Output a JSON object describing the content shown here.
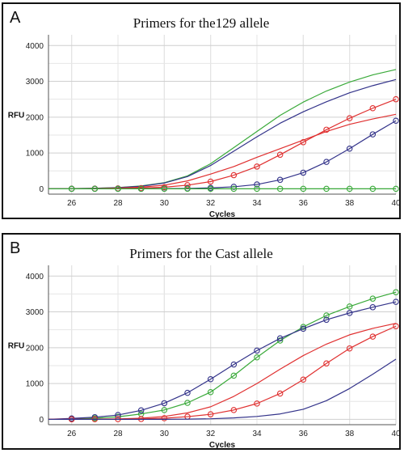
{
  "chart_data": [
    {
      "type": "line",
      "panel_label": "A",
      "title": "Primers for the129 allele",
      "xlabel": "Cycles",
      "ylabel": "RFU",
      "xlim": [
        25,
        40
      ],
      "ylim": [
        -150,
        4300
      ],
      "x_ticks": [
        26,
        28,
        30,
        32,
        34,
        36,
        38,
        40
      ],
      "y_ticks": [
        0,
        1000,
        2000,
        3000,
        4000
      ],
      "grid": true,
      "series": [
        {
          "color": "#3aaa3a",
          "marker": false,
          "x": [
            25,
            26,
            27,
            28,
            29,
            30,
            31,
            32,
            33,
            34,
            35,
            36,
            37,
            38,
            39,
            40
          ],
          "y": [
            0,
            5,
            15,
            35,
            80,
            170,
            360,
            700,
            1150,
            1600,
            2050,
            2420,
            2730,
            2980,
            3180,
            3330
          ]
        },
        {
          "color": "#33338a",
          "marker": false,
          "x": [
            25,
            26,
            27,
            28,
            29,
            30,
            31,
            32,
            33,
            34,
            35,
            36,
            37,
            38,
            39,
            40
          ],
          "y": [
            0,
            5,
            12,
            30,
            70,
            160,
            340,
            650,
            1050,
            1450,
            1830,
            2150,
            2430,
            2680,
            2880,
            3050
          ]
        },
        {
          "color": "#e03030",
          "marker": false,
          "x": [
            25,
            26,
            27,
            28,
            29,
            30,
            31,
            32,
            33,
            34,
            35,
            36,
            37,
            38,
            39,
            40
          ],
          "y": [
            0,
            3,
            8,
            20,
            45,
            100,
            220,
            410,
            620,
            880,
            1120,
            1360,
            1600,
            1800,
            1950,
            2080
          ]
        },
        {
          "color": "#e03030",
          "marker": true,
          "x": [
            25,
            26,
            27,
            28,
            29,
            30,
            31,
            32,
            33,
            34,
            35,
            36,
            37,
            38,
            39,
            40
          ],
          "y": [
            0,
            2,
            5,
            10,
            20,
            45,
            100,
            200,
            380,
            620,
            950,
            1300,
            1650,
            1970,
            2250,
            2500
          ]
        },
        {
          "color": "#33338a",
          "marker": true,
          "x": [
            25,
            26,
            27,
            28,
            29,
            30,
            31,
            32,
            33,
            34,
            35,
            36,
            37,
            38,
            39,
            40
          ],
          "y": [
            0,
            0,
            0,
            0,
            0,
            5,
            10,
            25,
            55,
            120,
            250,
            450,
            750,
            1120,
            1520,
            1900
          ]
        },
        {
          "color": "#3aaa3a",
          "marker": true,
          "x": [
            25,
            26,
            27,
            28,
            29,
            30,
            31,
            32,
            33,
            34,
            35,
            36,
            37,
            38,
            39,
            40
          ],
          "y": [
            0,
            0,
            0,
            0,
            0,
            0,
            0,
            0,
            0,
            0,
            0,
            0,
            0,
            0,
            0,
            0
          ]
        }
      ]
    },
    {
      "type": "line",
      "panel_label": "B",
      "title": "Primers for the Cast allele",
      "xlabel": "Cycles",
      "ylabel": "RFU",
      "xlim": [
        25,
        40
      ],
      "ylim": [
        -150,
        4300
      ],
      "x_ticks": [
        26,
        28,
        30,
        32,
        34,
        36,
        38,
        40
      ],
      "y_ticks": [
        0,
        1000,
        2000,
        3000,
        4000
      ],
      "grid": true,
      "series": [
        {
          "color": "#3aaa3a",
          "marker": true,
          "x": [
            25,
            26,
            27,
            28,
            29,
            30,
            31,
            32,
            33,
            34,
            35,
            36,
            37,
            38,
            39,
            40
          ],
          "y": [
            0,
            10,
            30,
            70,
            150,
            260,
            460,
            760,
            1220,
            1730,
            2200,
            2580,
            2900,
            3150,
            3370,
            3550
          ]
        },
        {
          "color": "#33338a",
          "marker": true,
          "x": [
            25,
            26,
            27,
            28,
            29,
            30,
            31,
            32,
            33,
            34,
            35,
            36,
            37,
            38,
            39,
            40
          ],
          "y": [
            0,
            25,
            60,
            120,
            250,
            450,
            740,
            1120,
            1530,
            1920,
            2260,
            2530,
            2780,
            2970,
            3130,
            3280
          ]
        },
        {
          "color": "#e03030",
          "marker": false,
          "x": [
            25,
            26,
            27,
            28,
            29,
            30,
            31,
            32,
            33,
            34,
            35,
            36,
            37,
            38,
            39,
            40
          ],
          "y": [
            0,
            2,
            5,
            12,
            30,
            80,
            180,
            350,
            640,
            1000,
            1400,
            1780,
            2100,
            2360,
            2540,
            2680
          ]
        },
        {
          "color": "#e03030",
          "marker": true,
          "x": [
            25,
            26,
            27,
            28,
            29,
            30,
            31,
            32,
            33,
            34,
            35,
            36,
            37,
            38,
            39,
            40
          ],
          "y": [
            0,
            0,
            2,
            5,
            10,
            30,
            75,
            140,
            260,
            440,
            720,
            1110,
            1560,
            1980,
            2310,
            2600
          ]
        },
        {
          "color": "#33338a",
          "marker": false,
          "x": [
            25,
            26,
            27,
            28,
            29,
            30,
            31,
            32,
            33,
            34,
            35,
            36,
            37,
            38,
            39,
            40
          ],
          "y": [
            0,
            0,
            0,
            0,
            0,
            0,
            5,
            15,
            40,
            80,
            150,
            280,
            520,
            860,
            1260,
            1680
          ]
        }
      ]
    }
  ]
}
